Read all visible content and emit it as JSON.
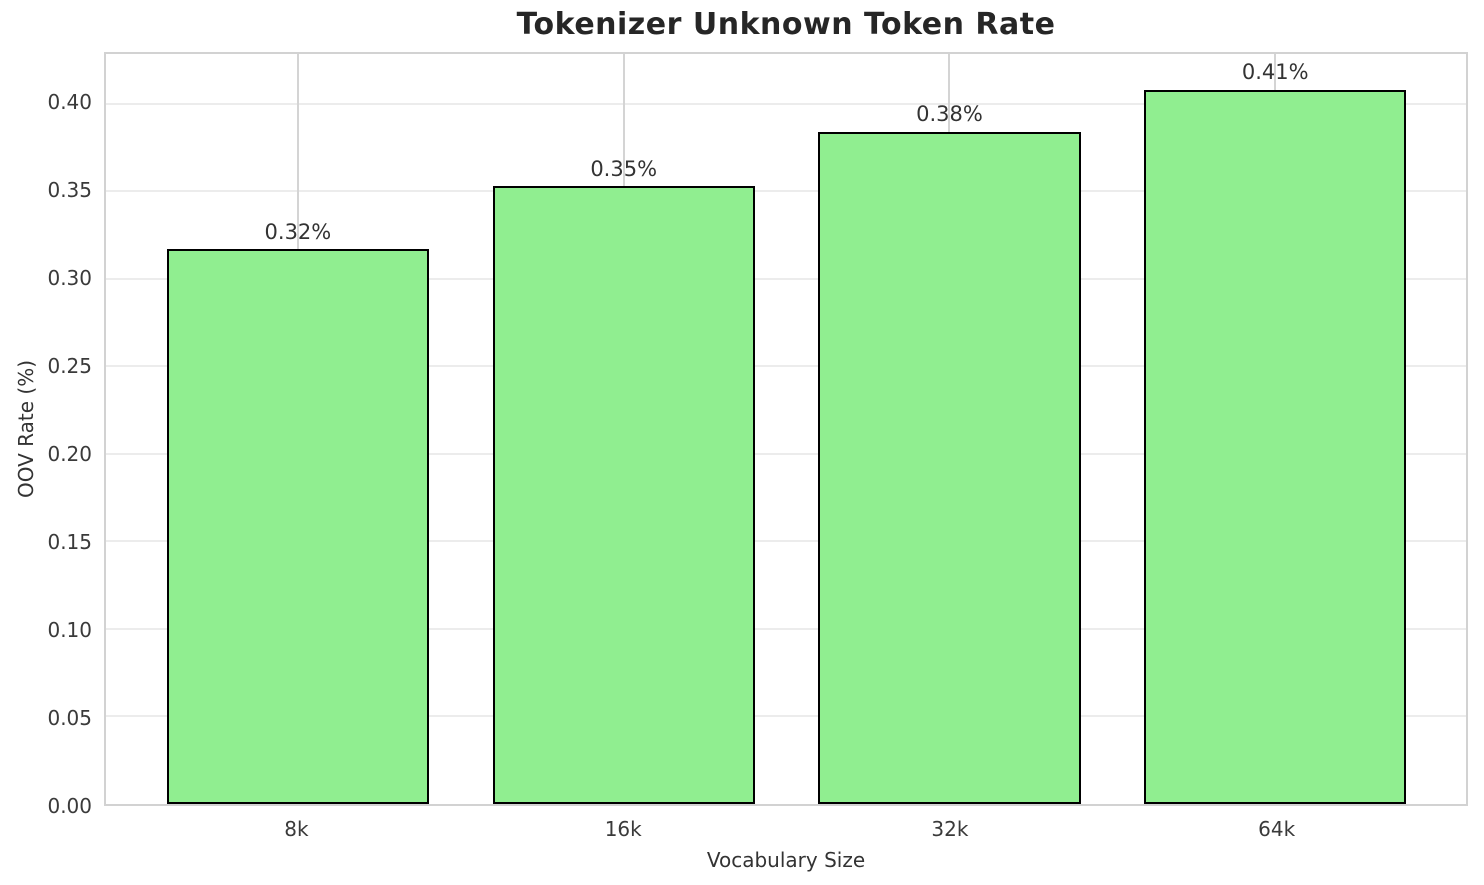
{
  "chart_data": {
    "type": "bar",
    "title": "Tokenizer Unknown Token Rate",
    "xlabel": "Vocabulary Size",
    "ylabel": "OOV Rate (%)",
    "categories": [
      "8k",
      "16k",
      "32k",
      "64k"
    ],
    "values": [
      0.317,
      0.353,
      0.384,
      0.408
    ],
    "bar_labels": [
      "0.32%",
      "0.35%",
      "0.38%",
      "0.41%"
    ],
    "ylim": [
      0,
      0.4284
    ],
    "ytick_values": [
      0.0,
      0.05,
      0.1,
      0.15,
      0.2,
      0.25,
      0.3,
      0.35,
      0.4
    ],
    "ytick_labels": [
      "0.00",
      "0.05",
      "0.10",
      "0.15",
      "0.20",
      "0.25",
      "0.30",
      "0.35",
      "0.40"
    ],
    "grid": true,
    "legend": false,
    "bar_color": "#90EE90",
    "bar_edge_color": "#000000"
  }
}
